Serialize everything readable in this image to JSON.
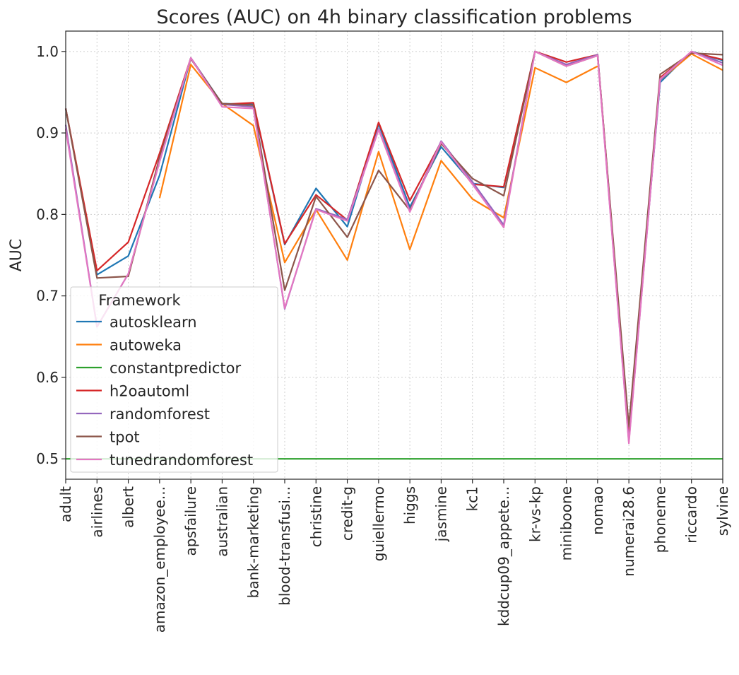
{
  "chart_data": {
    "type": "line",
    "title": "Scores (AUC) on 4h binary classification problems",
    "xlabel": "",
    "ylabel": "AUC",
    "ylim": [
      0.475,
      1.025
    ],
    "yticks": [
      "0.5",
      "0.6",
      "0.7",
      "0.8",
      "0.9",
      "1.0"
    ],
    "grid": true,
    "legend_title": "Framework",
    "legend_position": "lower-left",
    "categories": [
      "adult",
      "airlines",
      "albert",
      "amazon_employee...",
      "apsfailure",
      "australian",
      "bank-marketing",
      "blood-transfusi...",
      "christine",
      "credit-g",
      "guiellermo",
      "higgs",
      "jasmine",
      "kc1",
      "kddcup09_appete...",
      "kr-vs-kp",
      "miniboone",
      "nomao",
      "numerai28.6",
      "phoneme",
      "riccardo",
      "sylvine"
    ],
    "series": [
      {
        "name": "autosklearn",
        "color": "#1f77b4",
        "values": [
          0.93,
          0.726,
          0.749,
          0.848,
          0.992,
          0.936,
          0.935,
          0.763,
          0.832,
          0.785,
          0.911,
          0.809,
          0.883,
          0.838,
          0.833,
          1.0,
          0.983,
          0.996,
          0.53,
          0.962,
          1.0,
          0.989
        ]
      },
      {
        "name": "autoweka",
        "color": "#ff7f0e",
        "values": [
          null,
          null,
          null,
          0.82,
          0.984,
          0.936,
          0.909,
          0.741,
          0.806,
          0.744,
          0.877,
          0.757,
          0.866,
          0.819,
          0.796,
          0.98,
          0.962,
          0.982,
          null,
          0.965,
          0.997,
          0.977
        ]
      },
      {
        "name": "constantpredictor",
        "color": "#2ca02c",
        "values": [
          0.5,
          0.5,
          0.5,
          0.5,
          0.5,
          0.5,
          0.5,
          0.5,
          0.5,
          0.5,
          0.5,
          0.5,
          0.5,
          0.5,
          0.5,
          0.5,
          0.5,
          0.5,
          0.5,
          0.5,
          0.5,
          0.5
        ]
      },
      {
        "name": "h2oautoml",
        "color": "#d62728",
        "values": [
          0.93,
          0.731,
          0.766,
          0.875,
          0.992,
          0.935,
          0.937,
          0.764,
          0.824,
          0.793,
          0.913,
          0.817,
          0.889,
          0.837,
          0.834,
          1.0,
          0.987,
          0.996,
          0.533,
          0.968,
          0.999,
          0.99
        ]
      },
      {
        "name": "randomforest",
        "color": "#9467bd",
        "values": [
          0.91,
          0.662,
          0.727,
          0.865,
          0.992,
          0.935,
          0.932,
          0.684,
          0.807,
          0.794,
          0.905,
          0.805,
          0.89,
          0.84,
          0.787,
          1.0,
          0.984,
          0.996,
          0.521,
          0.965,
          1.0,
          0.986
        ]
      },
      {
        "name": "tpot",
        "color": "#8c564b",
        "values": [
          0.93,
          0.722,
          0.724,
          0.87,
          0.991,
          0.936,
          0.934,
          0.707,
          0.822,
          0.772,
          0.854,
          0.805,
          0.887,
          0.844,
          0.823,
          1.0,
          0.982,
          0.995,
          0.54,
          0.972,
          0.998,
          0.996
        ]
      },
      {
        "name": "tunedrandomforest",
        "color": "#e377c2",
        "values": [
          0.905,
          0.662,
          0.727,
          0.865,
          0.992,
          0.932,
          0.93,
          0.685,
          0.806,
          0.792,
          0.904,
          0.803,
          0.889,
          0.837,
          0.784,
          1.0,
          0.982,
          0.995,
          0.519,
          0.966,
          1.0,
          0.983
        ]
      }
    ]
  }
}
